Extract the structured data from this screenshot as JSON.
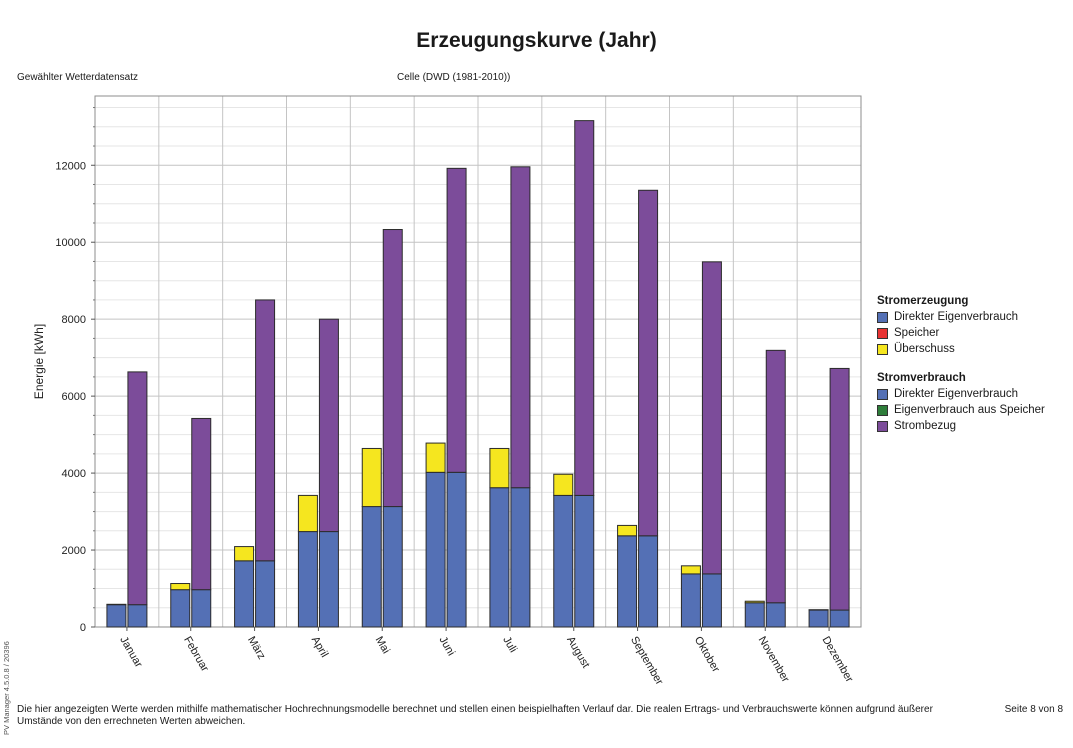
{
  "header": {
    "title": "Erzeugungskurve (Jahr)",
    "weather_label": "Gewählter Wetterdatensatz",
    "weather_value": "Celle (DWD (1981-2010))"
  },
  "legend": {
    "group1": "Stromerzeugung",
    "group1_items": [
      "Direkter Eigenverbrauch",
      "Speicher",
      "Überschuss"
    ],
    "group2": "Stromverbrauch",
    "group2_items": [
      "Direkter Eigenverbrauch",
      "Eigenverbrauch aus Speicher",
      "Strombezug"
    ]
  },
  "colors": {
    "direct": "#5470b5",
    "storage": "#e83333",
    "surplus": "#f5e61f",
    "storage_consumption": "#2e7d3a",
    "grid": "#7c4c9a"
  },
  "footer": {
    "version": "PV Manager 4.5.0.8 / 20396",
    "disclaimer": "Die hier angezeigten Werte werden mithilfe mathematischer Hochrechnungsmodelle berechnet und stellen einen beispielhaften Verlauf dar. Die realen Ertrags- und Verbrauchswerte können aufgrund äußerer Umstände von den errechneten Werten abweichen.",
    "page": "Seite 8 von 8"
  },
  "chart_data": {
    "type": "bar",
    "title": "Erzeugungskurve (Jahr)",
    "ylabel": "Energie [kWh]",
    "xlabel": "",
    "ylim": [
      0,
      13800
    ],
    "yticks": [
      0,
      2000,
      4000,
      6000,
      8000,
      10000,
      12000
    ],
    "categories": [
      "Januar",
      "Februar",
      "März",
      "April",
      "Mai",
      "Juni",
      "Juli",
      "August",
      "September",
      "Oktober",
      "November",
      "Dezember"
    ],
    "stacks": [
      {
        "name": "Stromerzeugung",
        "series": [
          {
            "name": "Direkter Eigenverbrauch",
            "values": [
              580,
              970,
              1720,
              2480,
              3130,
              4020,
              3620,
              3420,
              2370,
              1380,
              630,
              440
            ]
          },
          {
            "name": "Speicher",
            "values": [
              0,
              0,
              0,
              0,
              0,
              0,
              0,
              0,
              0,
              0,
              0,
              0
            ]
          },
          {
            "name": "Überschuss",
            "values": [
              10,
              160,
              370,
              940,
              1510,
              760,
              1020,
              550,
              270,
              210,
              40,
              10
            ]
          }
        ]
      },
      {
        "name": "Stromverbrauch",
        "series": [
          {
            "name": "Direkter Eigenverbrauch",
            "values": [
              580,
              970,
              1720,
              2480,
              3130,
              4020,
              3620,
              3420,
              2370,
              1380,
              630,
              440
            ]
          },
          {
            "name": "Eigenverbrauch aus Speicher",
            "values": [
              0,
              0,
              0,
              0,
              0,
              0,
              0,
              0,
              0,
              0,
              0,
              0
            ]
          },
          {
            "name": "Strombezug",
            "values": [
              6050,
              4450,
              6780,
              5520,
              7200,
              7900,
              8340,
              9740,
              8980,
              8110,
              6560,
              6280
            ]
          }
        ]
      }
    ],
    "grid": true,
    "legend_position": "right"
  }
}
